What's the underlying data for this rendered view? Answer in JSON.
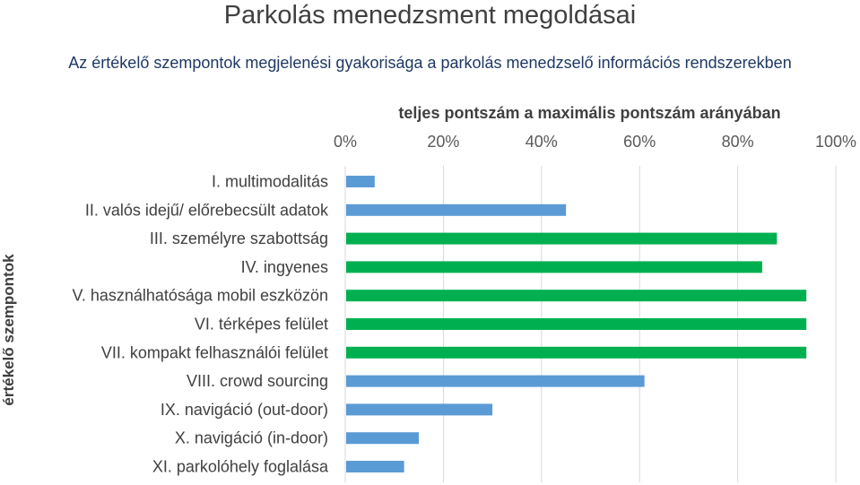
{
  "header": {
    "title": "Parkolás menedzsment megoldásai",
    "subtitle": "Az értékelő szempontok megjelenési gyakorisága a parkolás menedzselő információs rendszerekben"
  },
  "chart_data": {
    "type": "bar",
    "orientation": "horizontal",
    "xlabel": "teljes pontszám a maximális pontszám arányában",
    "ylabel": "értékelő szempontok",
    "xlim": [
      0,
      100
    ],
    "x_axis_position": "top",
    "x_ticks": [
      "0%",
      "20%",
      "40%",
      "60%",
      "80%",
      "100%"
    ],
    "grid": true,
    "categories": [
      "I. multimodalitás",
      "II. valós idejű/ előrebecsült adatok",
      "III. személyre szabottság",
      "IV. ingyenes",
      "V. használhatósága mobil eszközön",
      "VI. térképes felület",
      "VII. kompakt felhasználói felület",
      "VIII. crowd sourcing",
      "IX. navigáció (out-door)",
      "X. navigáció (in-door)",
      "XI. parkolóhely foglalása"
    ],
    "values": [
      6,
      45,
      88,
      85,
      94,
      94,
      94,
      61,
      30,
      15,
      12
    ],
    "bar_colors": [
      "#5b9bd5",
      "#5b9bd5",
      "#00b050",
      "#00b050",
      "#00b050",
      "#00b050",
      "#00b050",
      "#5b9bd5",
      "#5b9bd5",
      "#5b9bd5",
      "#5b9bd5"
    ],
    "colors": {
      "blue": "#5b9bd5",
      "green": "#00b050",
      "grid": "#d9d9d9"
    }
  }
}
